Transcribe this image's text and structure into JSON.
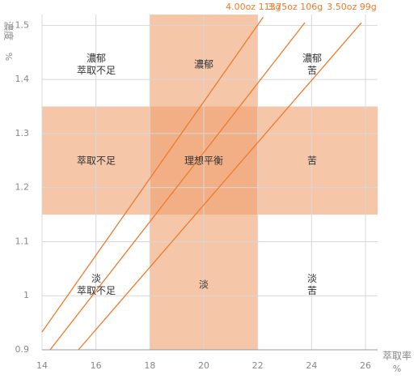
{
  "chart_data": {
    "type": "line",
    "y_label": "濃度",
    "y_unit": "%",
    "x_label": "萃取率",
    "x_unit": "%",
    "xlim": [
      14,
      26.45
    ],
    "ylim": [
      0.9,
      1.52
    ],
    "xticks": [
      14,
      16,
      18,
      20,
      22,
      24,
      26
    ],
    "yticks": [
      0.9,
      1,
      1.1,
      1.2,
      1.3,
      1.4,
      1.5
    ],
    "grid": true,
    "ideal_x": [
      18,
      22
    ],
    "ideal_y": [
      1.15,
      1.35
    ],
    "band_color": "#f0a070",
    "series": [
      {
        "name": "4.00oz 113g",
        "color": "#f07a2a",
        "x": [
          14,
          22.2
        ],
        "values": [
          0.933,
          1.515
        ]
      },
      {
        "name": "3.75oz 106g",
        "color": "#f07a2a",
        "x": [
          14.3,
          23.75
        ],
        "values": [
          0.9,
          1.505
        ]
      },
      {
        "name": "3.50oz 99g",
        "color": "#f07a2a",
        "x": [
          15.35,
          25.85
        ],
        "values": [
          0.9,
          1.505
        ]
      }
    ],
    "zones": [
      [
        "濃郁",
        "萃取不足"
      ],
      [
        "濃郁"
      ],
      [
        "濃郁",
        "苦"
      ],
      [
        "萃取不足"
      ],
      [
        "理想平衡"
      ],
      [
        "苦"
      ],
      [
        "淡",
        "萃取不足"
      ],
      [
        "淡"
      ],
      [
        "淡",
        "苦"
      ]
    ]
  }
}
